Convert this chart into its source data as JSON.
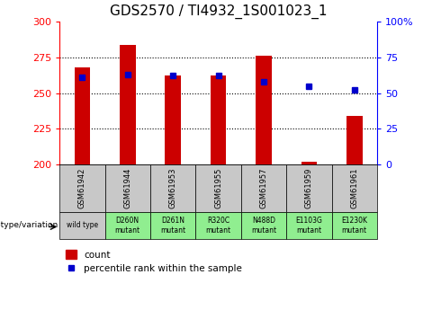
{
  "title": "GDS2570 / TI4932_1S001023_1",
  "samples": [
    "GSM61942",
    "GSM61944",
    "GSM61953",
    "GSM61955",
    "GSM61957",
    "GSM61959",
    "GSM61961"
  ],
  "genotype": [
    "wild type",
    "D260N\nmutant",
    "D261N\nmutant",
    "R320C\nmutant",
    "N488D\nmutant",
    "E1103G\nmutant",
    "E1230K\nmutant"
  ],
  "count_values": [
    268,
    284,
    262,
    262,
    276,
    202,
    234
  ],
  "percentile_values": [
    61,
    63,
    62,
    62,
    58,
    55,
    52
  ],
  "bar_color": "#cc0000",
  "dot_color": "#0000cc",
  "left_ylim": [
    200,
    300
  ],
  "right_ylim": [
    0,
    100
  ],
  "left_yticks": [
    200,
    225,
    250,
    275,
    300
  ],
  "right_yticks": [
    0,
    25,
    50,
    75,
    100
  ],
  "right_yticklabels": [
    "0",
    "25",
    "50",
    "75",
    "100%"
  ],
  "grid_color": "black",
  "grid_style": "dotted",
  "grid_levels": [
    225,
    250,
    275
  ],
  "legend_count_label": "count",
  "legend_percentile_label": "percentile rank within the sample",
  "genotype_label": "genotype/variation",
  "wild_bg": "#c8c8c8",
  "mutant_bg": "#90ee90",
  "sample_bg": "#c8c8c8",
  "title_fontsize": 11,
  "tick_fontsize": 8,
  "bar_width": 0.35,
  "dot_size": 40
}
